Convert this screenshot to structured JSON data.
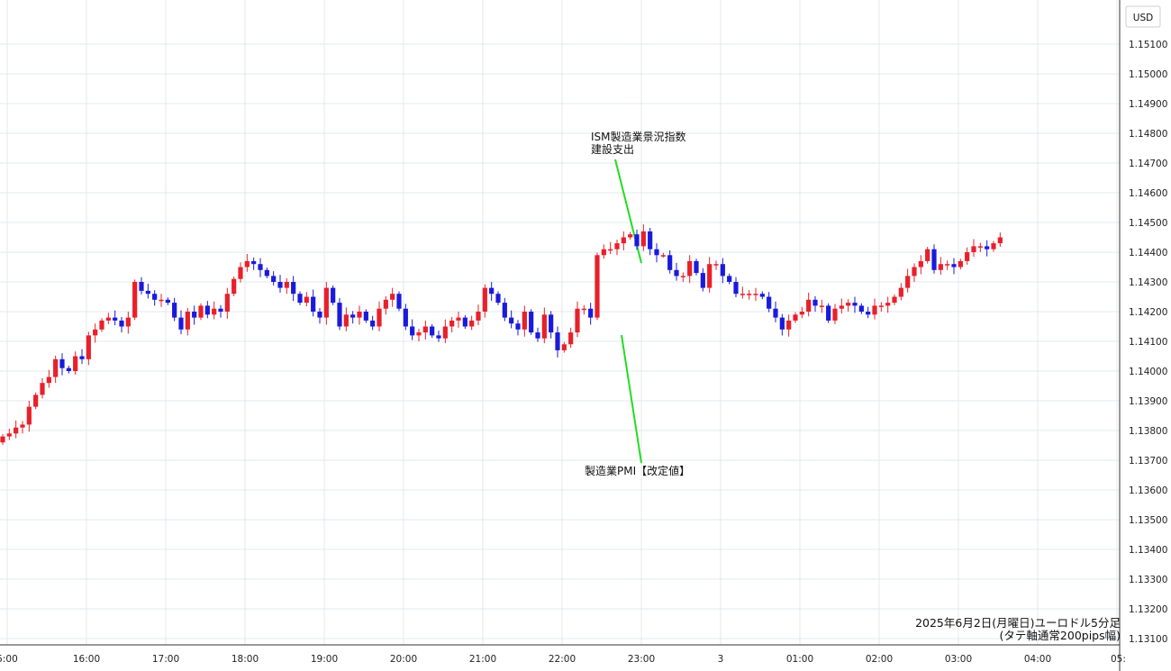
{
  "chart_data": {
    "type": "candlestick",
    "currency": "USD",
    "y_ticks": [
      "1.15100",
      "1.15000",
      "1.14900",
      "1.14800",
      "1.14700",
      "1.14600",
      "1.14500",
      "1.14400",
      "1.14300",
      "1.14200",
      "1.14100",
      "1.14000",
      "1.13900",
      "1.13800",
      "1.13700",
      "1.13600",
      "1.13500",
      "1.13400",
      "1.13300",
      "1.13200",
      "1.13100"
    ],
    "ylim": [
      1.1309,
      1.1518
    ],
    "x_ticks": [
      "5:00",
      "16:00",
      "17:00",
      "18:00",
      "19:00",
      "20:00",
      "21:00",
      "22:00",
      "23:00",
      "3",
      "01:00",
      "02:00",
      "03:00",
      "04:00",
      "05:"
    ],
    "caption_lines": [
      "2025年6月2日(月曜日)ユーロドル5分足",
      "(タテ軸通常200pips幅)"
    ],
    "annotations": [
      {
        "lines": [
          "ISM製造業景況指数",
          "建設支出"
        ]
      },
      {
        "lines": [
          "製造業PMI【改定値】"
        ]
      }
    ],
    "colors": {
      "up": "#e8202a",
      "down": "#1a1adc",
      "annotation_line": "#22dd22"
    },
    "closes": [
      1.1378,
      1.1379,
      1.1381,
      1.1382,
      1.1388,
      1.1392,
      1.1396,
      1.1398,
      1.1404,
      1.1401,
      1.14,
      1.1405,
      1.1404,
      1.1412,
      1.1414,
      1.1417,
      1.1418,
      1.1417,
      1.1415,
      1.1418,
      1.143,
      1.1427,
      1.1426,
      1.1424,
      1.1424,
      1.1423,
      1.1418,
      1.1414,
      1.142,
      1.1418,
      1.1422,
      1.1419,
      1.1421,
      1.142,
      1.1426,
      1.1431,
      1.1435,
      1.1437,
      1.1436,
      1.1434,
      1.1432,
      1.143,
      1.1428,
      1.143,
      1.1426,
      1.1423,
      1.1425,
      1.142,
      1.1418,
      1.1428,
      1.1423,
      1.1415,
      1.1419,
      1.1418,
      1.142,
      1.1417,
      1.1415,
      1.1421,
      1.1424,
      1.1426,
      1.1421,
      1.1415,
      1.1412,
      1.1413,
      1.1415,
      1.1412,
      1.1411,
      1.1415,
      1.1417,
      1.1418,
      1.1415,
      1.1417,
      1.142,
      1.1428,
      1.1426,
      1.1423,
      1.1418,
      1.1416,
      1.1414,
      1.142,
      1.1413,
      1.1411,
      1.1419,
      1.1413,
      1.1407,
      1.1409,
      1.1413,
      1.1421,
      1.1421,
      1.1418,
      1.1439,
      1.1441,
      1.1441,
      1.1443,
      1.1445,
      1.1446,
      1.1442,
      1.1447,
      1.1441,
      1.1439,
      1.1439,
      1.1434,
      1.1432,
      1.1432,
      1.1437,
      1.1433,
      1.1428,
      1.1436,
      1.1436,
      1.1432,
      1.143,
      1.1426,
      1.1426,
      1.1426,
      1.1426,
      1.1425,
      1.1421,
      1.1418,
      1.1414,
      1.1417,
      1.1419,
      1.142,
      1.1424,
      1.1422,
      1.1422,
      1.1417,
      1.1421,
      1.1422,
      1.1423,
      1.1422,
      1.142,
      1.1419,
      1.1422,
      1.1422,
      1.1423,
      1.1425,
      1.1428,
      1.1432,
      1.1435,
      1.1437,
      1.1441,
      1.1434,
      1.1436,
      1.1436,
      1.1435,
      1.1437,
      1.144,
      1.1442,
      1.1442,
      1.1441,
      1.1443,
      1.1445
    ]
  }
}
